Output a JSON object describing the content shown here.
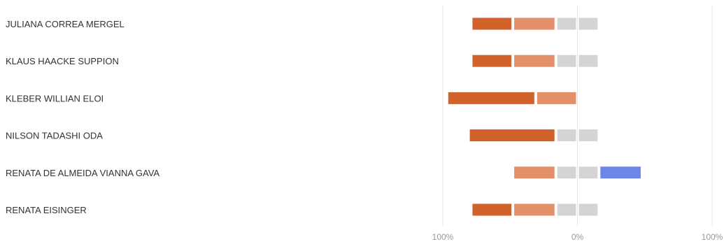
{
  "chart_data": {
    "type": "bar",
    "orientation": "horizontal",
    "stacked": "diverging",
    "categories": [
      "JULIANA CORREA MERGEL",
      "KLAUS HAACKE SUPPION",
      "KLEBER WILLIAN ELOI",
      "NILSON TADASHI ODA",
      "RENATA DE ALMEIDA VIANNA GAVA",
      "RENATA EISINGER"
    ],
    "neutral_split": true,
    "series": [
      {
        "side": "negative",
        "color": "#d2622b",
        "values": [
          31,
          31,
          66,
          65,
          0,
          31
        ]
      },
      {
        "side": "negative",
        "color": "#e3906a",
        "values": [
          32,
          32,
          31,
          0,
          32,
          32
        ]
      },
      {
        "side": "neutral",
        "color": "#d4d4d4",
        "values": [
          32,
          32,
          0,
          32,
          32,
          32
        ]
      },
      {
        "side": "positive",
        "color": "#6b86e8",
        "values": [
          0,
          0,
          0,
          0,
          32,
          0
        ]
      }
    ],
    "xlim": [
      -100,
      100
    ],
    "x_ticks": [
      {
        "value": -100,
        "label": "100%"
      },
      {
        "value": 0,
        "label": "0%"
      },
      {
        "value": 100,
        "label": "100%"
      }
    ],
    "grid": true,
    "legend": "none"
  }
}
